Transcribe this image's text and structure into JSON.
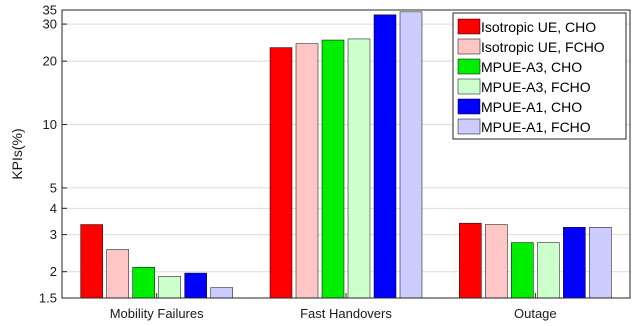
{
  "chart_data": {
    "type": "bar",
    "scale": "log",
    "ylabel": "KPIs(%)",
    "xlabel": "",
    "ylim": [
      1.5,
      35
    ],
    "yticks": [
      1.5,
      2,
      3,
      4,
      5,
      10,
      20,
      30,
      35
    ],
    "grid": true,
    "legend_position": "top-right",
    "categories": [
      "Mobility Failures",
      "Fast Handovers",
      "Outage"
    ],
    "series": [
      {
        "name": "Isotropic UE, CHO",
        "color": "#ff0000",
        "values": [
          3.35,
          23.2,
          3.4
        ]
      },
      {
        "name": "Isotropic UE, FCHO",
        "color": "#ffc6c6",
        "values": [
          2.55,
          24.2,
          3.35
        ]
      },
      {
        "name": "MPUE-A3, CHO",
        "color": "#00ee00",
        "values": [
          2.1,
          25.2,
          2.75
        ]
      },
      {
        "name": "MPUE-A3, FCHO",
        "color": "#ccffcc",
        "values": [
          1.9,
          25.5,
          2.75
        ]
      },
      {
        "name": "MPUE-A1, CHO",
        "color": "#0000ff",
        "values": [
          1.97,
          33.2,
          3.25
        ]
      },
      {
        "name": "MPUE-A1, FCHO",
        "color": "#ccccff",
        "values": [
          1.68,
          34.3,
          3.25
        ]
      }
    ]
  }
}
